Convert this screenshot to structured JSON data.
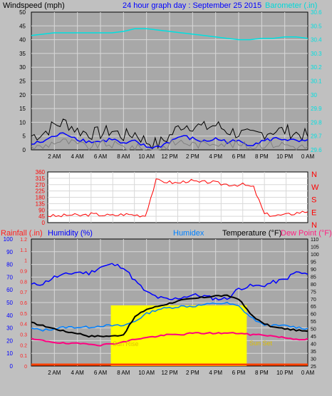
{
  "header": {
    "left": "Windspeed (mph)",
    "center": "24 hour graph day : September 25 2015",
    "right": "Barometer (.in)"
  },
  "x_ticks": [
    "2 AM",
    "4 AM",
    "6 AM",
    "8 AM",
    "10 AM",
    "12 PM",
    "2 PM",
    "4 PM",
    "6 PM",
    "8 PM",
    "10 PM",
    "0 AM"
  ],
  "direction_labels": [
    "N",
    "W",
    "S",
    "E",
    "N"
  ],
  "bottom_header": {
    "rainfall": "Rainfall (.in)",
    "humidity": "Humidity (%)",
    "humidex": "Humidex",
    "temperature": "Temperature (°F)",
    "dewpoint": "Dew Point (°F)"
  },
  "annotations": {
    "sunrise": "Sun Rise",
    "sunset": "Sun Set"
  },
  "colors": {
    "background": "#c0c0c0",
    "plot": "#a8a8a8",
    "grid": "#d8d8d8",
    "wind": "#000000",
    "avg_wind": "#0000ff",
    "gust": "#808080",
    "barometer": "#00e0e0",
    "direction": "#ff0000",
    "humidity": "#0000ff",
    "humidex": "#0080ff",
    "temperature": "#000000",
    "dewpoint": "#ff0080",
    "sunshine": "#ffff00",
    "rain": "#ff4000"
  },
  "chart_data": [
    {
      "type": "line",
      "name": "wind-barometer",
      "x": [
        0,
        1,
        2,
        3,
        4,
        5,
        6,
        7,
        8,
        9,
        10,
        11,
        12,
        13,
        14,
        15,
        16,
        17,
        18,
        19,
        20,
        21,
        22,
        23,
        24
      ],
      "ylim": [
        0,
        50
      ],
      "yticks": [
        "0",
        "5",
        "10",
        "15",
        "20",
        "25",
        "30",
        "35",
        "40",
        "45",
        "50"
      ],
      "y2lim": [
        29.6,
        30.6
      ],
      "y2ticks": [
        "29.6",
        "29.7",
        "29.8",
        "29.9",
        "30",
        "30.1",
        "30.2",
        "30.3",
        "30.4",
        "30.5",
        "30.6"
      ],
      "series": [
        {
          "name": "Windspeed",
          "axis": "left",
          "values": [
            5,
            6,
            9,
            10,
            7,
            6,
            6,
            7,
            5,
            6,
            3,
            2,
            5,
            9,
            9,
            8,
            9,
            7,
            6,
            5,
            6,
            7,
            7,
            6,
            5
          ]
        },
        {
          "name": "Average",
          "axis": "left",
          "values": [
            2,
            3,
            5,
            6,
            4,
            3,
            3,
            4,
            2,
            3,
            1,
            1,
            3,
            5,
            4,
            3,
            4,
            3,
            3,
            2,
            3,
            4,
            4,
            3,
            3
          ]
        },
        {
          "values": [
            1,
            1,
            3,
            3,
            2,
            1,
            2,
            2,
            1,
            1,
            0,
            0,
            2,
            3,
            2,
            2,
            3,
            2,
            2,
            1,
            2,
            2,
            2,
            1,
            1
          ]
        },
        {
          "name": "Barometer",
          "axis": "right",
          "values": [
            30.43,
            30.44,
            30.45,
            30.45,
            30.45,
            30.45,
            30.45,
            30.45,
            30.46,
            30.48,
            30.48,
            30.47,
            30.46,
            30.45,
            30.44,
            30.43,
            30.42,
            30.41,
            30.4,
            30.4,
            30.41,
            30.41,
            30.42,
            30.42,
            30.41
          ]
        }
      ]
    },
    {
      "type": "line",
      "name": "wind-direction",
      "x": [
        0,
        1,
        2,
        3,
        4,
        5,
        6,
        7,
        8,
        9,
        10,
        11,
        12,
        13,
        14,
        15,
        16,
        17,
        18,
        19,
        20,
        21,
        22,
        23,
        24
      ],
      "ylim": [
        0,
        360
      ],
      "yticks": [
        "0",
        "45",
        "90",
        "135",
        "180",
        "225",
        "270",
        "315",
        "360"
      ],
      "series": [
        {
          "name": "Wind Direction",
          "values": [
            50,
            45,
            55,
            50,
            60,
            55,
            50,
            60,
            55,
            50,
            300,
            290,
            280,
            300,
            285,
            290,
            275,
            270,
            270,
            250,
            60,
            50,
            55,
            70,
            80
          ]
        }
      ]
    },
    {
      "type": "line",
      "name": "temperature-humidity",
      "x": [
        0,
        1,
        2,
        3,
        4,
        5,
        6,
        7,
        8,
        9,
        10,
        11,
        12,
        13,
        14,
        15,
        16,
        17,
        18,
        19,
        20,
        21,
        22,
        23,
        24
      ],
      "ylim": [
        0,
        100
      ],
      "yticks": [
        "0",
        "10",
        "20",
        "30",
        "40",
        "50",
        "60",
        "70",
        "80",
        "90",
        "100"
      ],
      "rain_ylim": [
        0,
        1.2
      ],
      "rain_ticks": [
        "0",
        "0.1",
        "0.2",
        "0.3",
        "0.4",
        "0.5",
        "0.6",
        "0.7",
        "0.8",
        "0.9",
        "1",
        "1.1",
        "1.2"
      ],
      "temp_ylim": [
        25,
        110
      ],
      "temp_ticks": [
        "25",
        "30",
        "35",
        "40",
        "45",
        "50",
        "55",
        "60",
        "65",
        "70",
        "75",
        "80",
        "85",
        "90",
        "95",
        "100",
        "105",
        "110"
      ],
      "series": [
        {
          "name": "Humidity",
          "values": [
            64,
            65,
            70,
            72,
            74,
            73,
            78,
            80,
            78,
            67,
            58,
            54,
            52,
            54,
            56,
            55,
            53,
            53,
            61,
            63,
            63,
            66,
            68,
            74,
            72
          ]
        },
        {
          "name": "Humidex",
          "values": [
            50,
            49,
            50,
            51,
            51,
            51,
            52,
            52,
            52,
            55,
            60,
            63,
            64,
            65,
            65,
            66,
            67,
            67,
            65,
            58,
            53,
            52,
            52,
            51,
            50
          ]
        },
        {
          "name": "Temperature",
          "values": [
            54,
            52,
            50,
            48,
            47,
            45,
            45,
            45,
            46,
            58,
            63,
            65,
            67,
            69,
            70,
            71,
            72,
            72,
            70,
            60,
            54,
            51,
            50,
            49,
            48
          ]
        },
        {
          "name": "Dew Point",
          "values": [
            43,
            42,
            41,
            40,
            40,
            40,
            39,
            40,
            41,
            43,
            44,
            45,
            46,
            46,
            47,
            47,
            47,
            47,
            47,
            46,
            46,
            45,
            44,
            43,
            43
          ]
        }
      ],
      "sunshine": {
        "from": 6.9,
        "to": 18.7,
        "level": 0.55
      },
      "rainfall_total": 0
    }
  ]
}
